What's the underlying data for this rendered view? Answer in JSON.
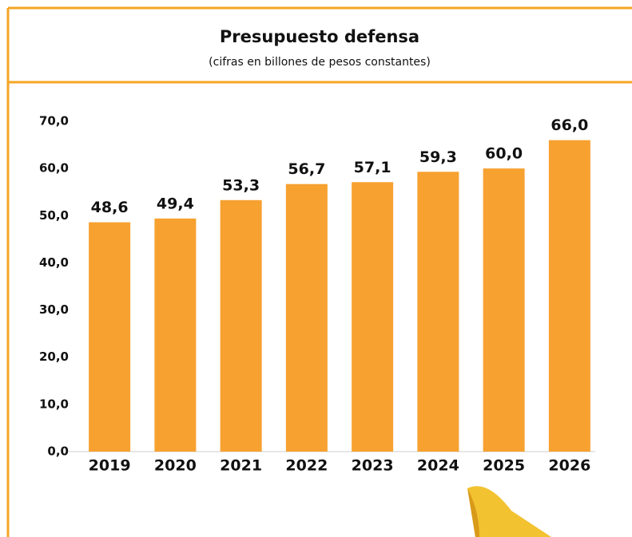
{
  "chart_data": {
    "type": "bar",
    "title": "Presupuesto defensa",
    "subtitle": "(cifras en billones de pesos constantes)",
    "categories": [
      "2019",
      "2020",
      "2021",
      "2022",
      "2023",
      "2024",
      "2025",
      "2026"
    ],
    "values": [
      48.6,
      49.4,
      53.3,
      56.7,
      57.1,
      59.3,
      60.0,
      66.0
    ],
    "value_labels": [
      "48,6",
      "49,4",
      "53,3",
      "56,7",
      "57,1",
      "59,3",
      "60,0",
      "66,0"
    ],
    "color": "#f7a130",
    "ylim": [
      0,
      70
    ],
    "yticks": [
      {
        "value": 0,
        "label": "0,0"
      },
      {
        "value": 10,
        "label": "10,0"
      },
      {
        "value": 20,
        "label": "20,0"
      },
      {
        "value": 30,
        "label": "30,0"
      },
      {
        "value": 40,
        "label": "40,0"
      },
      {
        "value": 50,
        "label": "50,0"
      },
      {
        "value": 60,
        "label": "60,0"
      },
      {
        "value": 70,
        "label": "70,0"
      }
    ],
    "grid": false
  }
}
